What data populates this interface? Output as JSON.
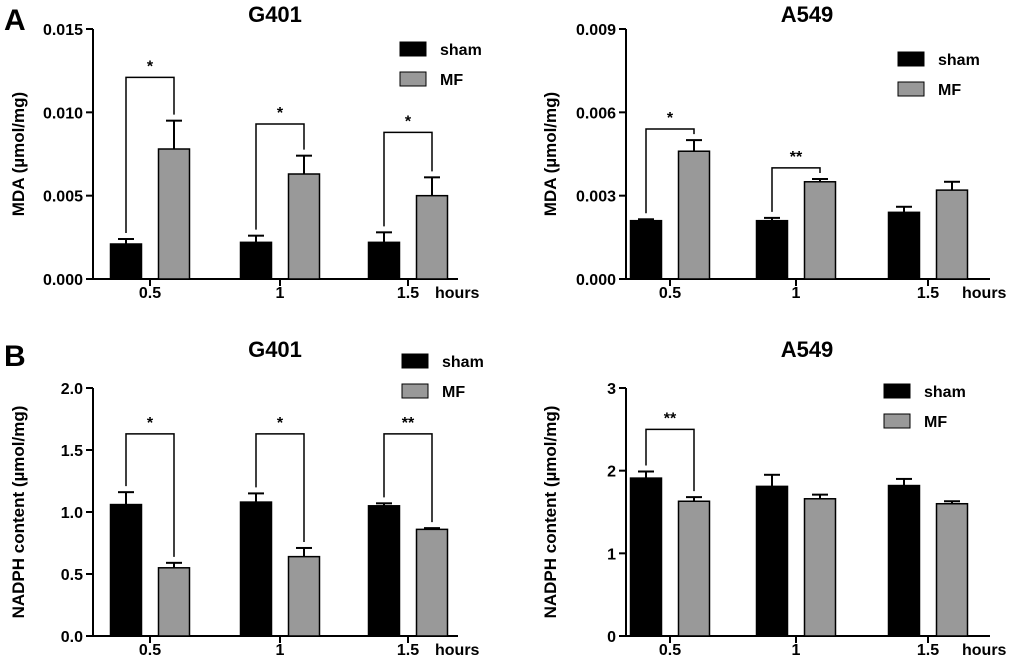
{
  "panel_labels": [
    "A",
    "B"
  ],
  "colors": {
    "sham": "#000000",
    "MF": "#999999",
    "axis": "#000000"
  },
  "chart_data": [
    {
      "type": "bar",
      "panel": "A",
      "title": "G401",
      "ylabel": "MDA (µmol/mg)",
      "xunit": "hours",
      "categories": [
        "0.5",
        "1",
        "1.5"
      ],
      "ylim": [
        0,
        0.015
      ],
      "yticks": [
        0,
        0.005,
        0.01,
        0.015
      ],
      "ytick_labels": [
        "0.000",
        "0.005",
        "0.010",
        "0.015"
      ],
      "legend": [
        "sham",
        "MF"
      ],
      "series": [
        {
          "name": "sham",
          "values": [
            0.0021,
            0.0022,
            0.0022
          ],
          "errors": [
            0.0003,
            0.0004,
            0.0006
          ]
        },
        {
          "name": "MF",
          "values": [
            0.0078,
            0.0063,
            0.005
          ],
          "errors": [
            0.0017,
            0.0011,
            0.0011
          ]
        }
      ],
      "significance": [
        {
          "category": 0,
          "label": "*",
          "y": 0.0121
        },
        {
          "category": 1,
          "label": "*",
          "y": 0.0093
        },
        {
          "category": 2,
          "label": "*",
          "y": 0.0088
        }
      ]
    },
    {
      "type": "bar",
      "panel": "A",
      "title": "A549",
      "ylabel": "MDA (µmol/mg)",
      "xunit": "hours",
      "categories": [
        "0.5",
        "1",
        "1.5"
      ],
      "ylim": [
        0,
        0.009
      ],
      "yticks": [
        0,
        0.003,
        0.006,
        0.009
      ],
      "ytick_labels": [
        "0.000",
        "0.003",
        "0.006",
        "0.009"
      ],
      "legend": [
        "sham",
        "MF"
      ],
      "series": [
        {
          "name": "sham",
          "values": [
            0.0021,
            0.0021,
            0.0024
          ],
          "errors": [
            5e-05,
            0.0001,
            0.0002
          ]
        },
        {
          "name": "MF",
          "values": [
            0.0046,
            0.0035,
            0.0032
          ],
          "errors": [
            0.0004,
            0.0001,
            0.0003
          ]
        }
      ],
      "significance": [
        {
          "category": 0,
          "label": "*",
          "y": 0.0054
        },
        {
          "category": 1,
          "label": "**",
          "y": 0.004
        }
      ]
    },
    {
      "type": "bar",
      "panel": "B",
      "title": "G401",
      "ylabel": "NADPH content (µmol/mg)",
      "xunit": "hours",
      "categories": [
        "0.5",
        "1",
        "1.5"
      ],
      "ylim": [
        0,
        2.0
      ],
      "yticks": [
        0,
        0.5,
        1.0,
        1.5,
        2.0
      ],
      "ytick_labels": [
        "0.0",
        "0.5",
        "1.0",
        "1.5",
        "2.0"
      ],
      "legend": [
        "sham",
        "MF"
      ],
      "series": [
        {
          "name": "sham",
          "values": [
            1.06,
            1.08,
            1.05
          ],
          "errors": [
            0.1,
            0.07,
            0.02
          ]
        },
        {
          "name": "MF",
          "values": [
            0.55,
            0.64,
            0.86
          ],
          "errors": [
            0.04,
            0.07,
            0.01
          ]
        }
      ],
      "significance": [
        {
          "category": 0,
          "label": "*",
          "y": 1.63
        },
        {
          "category": 1,
          "label": "*",
          "y": 1.63
        },
        {
          "category": 2,
          "label": "**",
          "y": 1.63
        }
      ]
    },
    {
      "type": "bar",
      "panel": "B",
      "title": "A549",
      "ylabel": "NADPH content (µmol/mg)",
      "xunit": "hours",
      "categories": [
        "0.5",
        "1",
        "1.5"
      ],
      "ylim": [
        0,
        3
      ],
      "yticks": [
        0,
        1,
        2,
        3
      ],
      "ytick_labels": [
        "0",
        "1",
        "2",
        "3"
      ],
      "legend": [
        "sham",
        "MF"
      ],
      "series": [
        {
          "name": "sham",
          "values": [
            1.91,
            1.81,
            1.82
          ],
          "errors": [
            0.08,
            0.14,
            0.08
          ]
        },
        {
          "name": "MF",
          "values": [
            1.63,
            1.66,
            1.6
          ],
          "errors": [
            0.05,
            0.05,
            0.03
          ]
        }
      ],
      "significance": [
        {
          "category": 0,
          "label": "**",
          "y": 2.5
        }
      ]
    }
  ]
}
